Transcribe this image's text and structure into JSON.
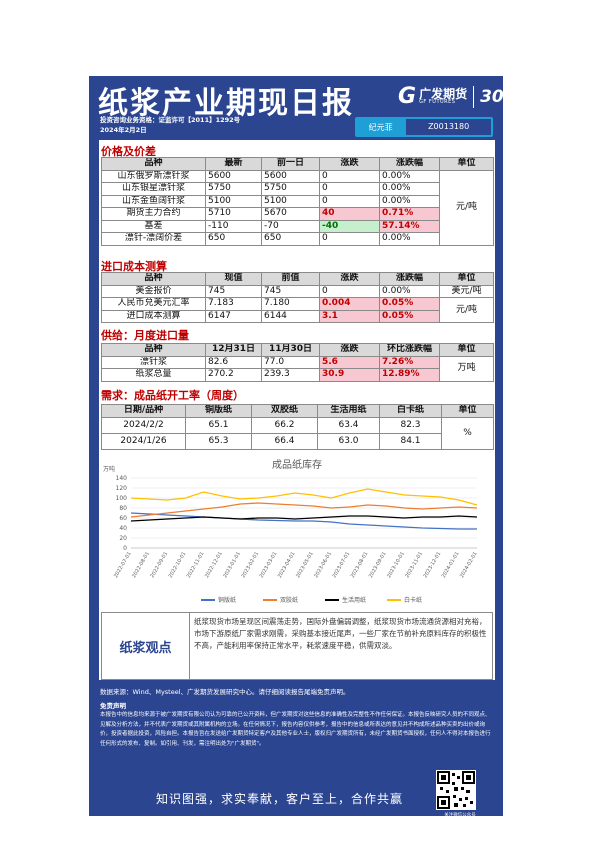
{
  "header": {
    "title": "纸浆产业期现日报",
    "logo_name": "广发期货",
    "logo_en": "GF FUTURES",
    "anniversary": "30",
    "license": "投资咨询业务资格：证监许可【2011】1292号",
    "date": "2024年2月2日",
    "analyst_name": "纪元菲",
    "analyst_id": "Z0013180"
  },
  "price": {
    "section": "价格及价差",
    "headers": [
      "品种",
      "最新",
      "前一日",
      "涨跌",
      "涨跌幅",
      "单位"
    ],
    "rows": [
      [
        "山东俄罗斯漂针浆",
        "5600",
        "5600",
        "0",
        "0.00%"
      ],
      [
        "山东银星漂针浆",
        "5750",
        "5750",
        "0",
        "0.00%"
      ],
      [
        "山东金鱼阔针浆",
        "5100",
        "5100",
        "0",
        "0.00%"
      ],
      [
        "期货主力合约",
        "5710",
        "5670",
        "40",
        "0.71%"
      ],
      [
        "基差",
        "-110",
        "-70",
        "-40",
        "57.14%"
      ],
      [
        "漂针-漂阔价差",
        "650",
        "650",
        "0",
        "0.00%"
      ]
    ],
    "unit": "元/吨"
  },
  "import_cost": {
    "section": "进口成本测算",
    "headers": [
      "品种",
      "现值",
      "前值",
      "涨跌",
      "涨跌幅",
      "单位"
    ],
    "rows": [
      [
        "美金报价",
        "745",
        "745",
        "0",
        "0.00%"
      ],
      [
        "人民币兑美元汇率",
        "7.183",
        "7.180",
        "0.004",
        "0.05%"
      ],
      [
        "进口成本测算",
        "6147",
        "6144",
        "3.1",
        "0.05%"
      ]
    ],
    "units": [
      "美元/吨",
      "",
      "元/吨"
    ]
  },
  "supply": {
    "section": "供给：月度进口量",
    "headers": [
      "品种",
      "12月31日",
      "11月30日",
      "涨跌",
      "环比涨跌幅",
      "单位"
    ],
    "rows": [
      [
        "漂针浆",
        "82.6",
        "77.0",
        "5.6",
        "7.26%"
      ],
      [
        "纸浆总量",
        "270.2",
        "239.3",
        "30.9",
        "12.89%"
      ]
    ],
    "unit": "万吨"
  },
  "demand": {
    "section": "需求：成品纸开工率（周度）",
    "headers": [
      "日期/品种",
      "铜版纸",
      "双胶纸",
      "生活用纸",
      "白卡纸",
      "单位"
    ],
    "rows": [
      [
        "2024/2/2",
        "65.1",
        "66.2",
        "63.4",
        "82.3"
      ],
      [
        "2024/1/26",
        "65.3",
        "66.4",
        "63.0",
        "84.1"
      ]
    ],
    "unit": "%"
  },
  "chart_data": {
    "type": "line",
    "title": "成品纸库存",
    "ylabel": "万吨",
    "ylim": [
      0,
      140
    ],
    "yticks": [
      0,
      20,
      40,
      60,
      80,
      100,
      120,
      140
    ],
    "x": [
      "2022-07-01",
      "2022-08-01",
      "2022-09-01",
      "2022-10-01",
      "2022-11-01",
      "2022-12-01",
      "2023-01-01",
      "2023-02-01",
      "2023-03-01",
      "2023-04-01",
      "2023-05-01",
      "2023-06-01",
      "2023-07-01",
      "2023-08-01",
      "2023-09-01",
      "2023-10-01",
      "2023-11-01",
      "2023-12-01",
      "2024-01-01",
      "2024-02-01"
    ],
    "series": [
      {
        "name": "铜版纸",
        "color": "#4472c4",
        "values": [
          70,
          68,
          66,
          64,
          62,
          60,
          58,
          56,
          55,
          54,
          54,
          52,
          48,
          46,
          44,
          42,
          40,
          39,
          38,
          38
        ]
      },
      {
        "name": "双胶纸",
        "color": "#ed7d31",
        "values": [
          62,
          66,
          70,
          74,
          78,
          82,
          88,
          90,
          88,
          86,
          84,
          80,
          82,
          86,
          84,
          80,
          78,
          80,
          82,
          80
        ]
      },
      {
        "name": "生活用纸",
        "color": "#000000",
        "values": [
          54,
          56,
          58,
          60,
          62,
          60,
          58,
          60,
          60,
          58,
          60,
          62,
          64,
          64,
          62,
          60,
          62,
          62,
          64,
          62
        ]
      },
      {
        "name": "白卡纸",
        "color": "#ffc000",
        "values": [
          100,
          98,
          96,
          100,
          112,
          104,
          98,
          100,
          104,
          110,
          106,
          100,
          110,
          118,
          112,
          106,
          104,
          102,
          96,
          86
        ]
      }
    ]
  },
  "view": {
    "label": "纸浆观点",
    "text": "纸浆现货市场呈现区间震荡走势，国际外盘偏弱调整，纸浆现货市场流通货源相对充裕，市场下游原纸厂家需求刚需，采购基本接近尾声，一些厂家在节前补充原料库存的积极性不高，产能利用率保持正常水平，耗浆速度平稳，供需双淡。"
  },
  "footer": {
    "source": "数据来源：Wind、Mysteel、广发期货发展研究中心。请仔细阅读报告尾端免责声明。",
    "disclaimer_title": "免责声明",
    "disclaimer": "本报告中的信息均来源于被广发期货有限公司认为可靠的已公开资料，但广发期货对这些信息的准确性及完整性不作任何保证。本报告反映研究人员的不同观点、见解及分析方法，并不代表广发期货或其附属机构的立场。在任何情况下，报告内容仅供参考，报告中的信息或所表达的意见并不构成所述品种买卖的出价或询价，投资者据此投资，风险自担。本报告旨在发送给广发期货特定客户及其他专业人士，版权归广发期货所有，未经广发期货书面授权，任何人不得对本报告进行任何形式的发布、复制。如引用、刊发，需注明出处为\"广发期货\"。",
    "slogan": "知识图强，求实奉献，客户至上，合作共赢",
    "qr_caption": "关注微信公众号"
  }
}
